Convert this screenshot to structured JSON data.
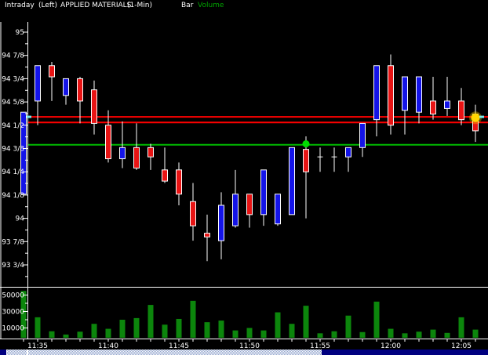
{
  "header": {
    "series_label": "Intraday",
    "axis_side": "(Left)",
    "symbol": "APPLIED MATERIALS",
    "interval": "(1-Min)",
    "bar_label": "Bar",
    "volume_label": "Volume"
  },
  "colors": {
    "background": "#000000",
    "up_candle": "#1414e8",
    "down_candle": "#e81414",
    "wick": "#ffffff",
    "doji": "#ffffff",
    "volume_bar": "#0c860c",
    "axis": "#ffffff",
    "text": "#ffffff",
    "volume_label_text": "#00a400",
    "red_line": "#ff0000",
    "green_line": "#00bb00",
    "green_marker": "#00dd00",
    "yellow_marker": "#ffd700",
    "cyan_marker": "#79e9e9",
    "scroll_thumb": "#000080"
  },
  "chart_data": [
    {
      "type": "candlestick",
      "title": "APPLIED MATERIALS (1-Min) Intraday",
      "pane": "price",
      "x": [
        "11:34",
        "11:35",
        "11:36",
        "11:37",
        "11:38",
        "11:39",
        "11:40",
        "11:41",
        "11:42",
        "11:43",
        "11:44",
        "11:45",
        "11:46",
        "11:47",
        "11:48",
        "11:49",
        "11:50",
        "11:51",
        "11:52",
        "11:53",
        "11:54",
        "11:55",
        "11:56",
        "11:57",
        "11:58",
        "11:59",
        "12:00",
        "12:01",
        "12:02",
        "12:03",
        "12:04",
        "12:05",
        "12:06"
      ],
      "bars_ohlc": [
        [
          94.13,
          94.57,
          94.13,
          94.57
        ],
        [
          94.63,
          94.82,
          94.5,
          94.82
        ],
        [
          94.82,
          94.84,
          94.63,
          94.76
        ],
        [
          94.66,
          94.75,
          94.61,
          94.75
        ],
        [
          94.75,
          94.76,
          94.51,
          94.63
        ],
        [
          94.69,
          94.74,
          94.45,
          94.51
        ],
        [
          94.5,
          94.58,
          94.3,
          94.32
        ],
        [
          94.32,
          94.52,
          94.27,
          94.38
        ],
        [
          94.38,
          94.51,
          94.26,
          94.27
        ],
        [
          94.38,
          94.4,
          94.26,
          94.33
        ],
        [
          94.26,
          94.38,
          94.19,
          94.2
        ],
        [
          94.26,
          94.3,
          94.07,
          94.13
        ],
        [
          94.09,
          94.19,
          93.88,
          93.96
        ],
        [
          93.92,
          94.02,
          93.77,
          93.9
        ],
        [
          93.88,
          94.14,
          93.78,
          94.07
        ],
        [
          93.96,
          94.26,
          93.95,
          94.13
        ],
        [
          94.13,
          94.13,
          93.95,
          94.02
        ],
        [
          94.02,
          94.26,
          93.96,
          94.26
        ],
        [
          93.97,
          94.13,
          93.96,
          94.13
        ],
        [
          94.02,
          94.38,
          94.02,
          94.38
        ],
        [
          94.37,
          94.44,
          94.0,
          94.25
        ],
        [
          94.33,
          94.38,
          94.25,
          94.33
        ],
        [
          94.33,
          94.38,
          94.25,
          94.33
        ],
        [
          94.33,
          94.38,
          94.25,
          94.38
        ],
        [
          94.38,
          94.51,
          94.33,
          94.51
        ],
        [
          94.53,
          94.82,
          94.44,
          94.82
        ],
        [
          94.82,
          94.88,
          94.45,
          94.5
        ],
        [
          94.58,
          94.76,
          94.45,
          94.76
        ],
        [
          94.57,
          94.76,
          94.51,
          94.76
        ],
        [
          94.63,
          94.76,
          94.53,
          94.56
        ],
        [
          94.59,
          94.76,
          94.55,
          94.63
        ],
        [
          94.63,
          94.7,
          94.5,
          94.53
        ],
        [
          94.56,
          94.61,
          94.41,
          94.47
        ]
      ],
      "ylim": [
        93.63,
        95.06
      ],
      "ytick_labels": [
        "95",
        "94 7/8",
        "94 3/4",
        "94 5/8",
        "94 1/2",
        "94 3/8",
        "94 1/4",
        "94 1/8",
        "94",
        "93 7/8",
        "93 3/4"
      ],
      "ytick_prices": [
        95,
        94.875,
        94.75,
        94.625,
        94.5,
        94.375,
        94.25,
        94.125,
        94,
        93.875,
        93.75
      ],
      "xtick_labels": [
        "11:35",
        "11:40",
        "11:45",
        "11:50",
        "11:55",
        "12:00",
        "12:05"
      ],
      "hlines": [
        {
          "price": 94.545,
          "color": "#ff0000"
        },
        {
          "price": 94.515,
          "color": "#ff0000"
        },
        {
          "price": 94.395,
          "color": "#00bb00"
        }
      ],
      "markers": [
        {
          "shape": "circle",
          "name": "green-dot-marker",
          "time": "11:54",
          "price": 94.4,
          "color": "#00dd00",
          "r": 4.5
        },
        {
          "shape": "circle",
          "name": "yellow-last-price-marker",
          "time": "12:06",
          "price": 94.54,
          "color": "#ffd700",
          "r": 5.5,
          "glow": true
        },
        {
          "shape": "dash",
          "name": "cyan-left-marker",
          "x": 34,
          "price": 94.545,
          "color": "#79e9e9"
        },
        {
          "shape": "dash",
          "name": "cyan-right-marker",
          "x": 611,
          "price": 94.545,
          "color": "#79e9e9"
        }
      ]
    },
    {
      "type": "bar",
      "name": "Volume",
      "pane": "volume",
      "values": [
        55000,
        23000,
        6000,
        2000,
        5500,
        15000,
        9000,
        20000,
        22000,
        38000,
        14000,
        21000,
        43000,
        17000,
        19000,
        7000,
        10000,
        7000,
        29000,
        15000,
        37000,
        3500,
        6000,
        25000,
        5000,
        42000,
        9000,
        3500,
        5500,
        8000,
        4000,
        23000,
        8000
      ],
      "ylim": [
        0,
        60000
      ],
      "ytick_labels": [
        "50000",
        "30000",
        "10000"
      ],
      "ytick_values": [
        50000,
        30000,
        10000
      ],
      "minor_tick_values": [
        40000,
        20000
      ]
    }
  ]
}
